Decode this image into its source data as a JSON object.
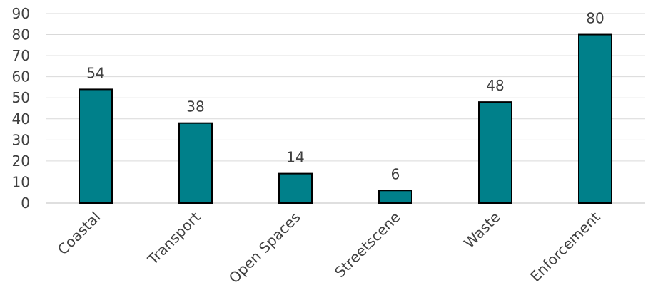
{
  "chart_data": {
    "type": "bar",
    "title": "",
    "xlabel": "",
    "ylabel": "",
    "categories": [
      "Coastal",
      "Transport",
      "Open Spaces",
      "Streetscene",
      "Waste",
      "Enforcement"
    ],
    "values": [
      54,
      38,
      14,
      6,
      48,
      80
    ],
    "ylim": [
      0,
      90
    ],
    "y_ticks": [
      0,
      10,
      20,
      30,
      40,
      50,
      60,
      70,
      80,
      90
    ],
    "data_labels": [
      "54",
      "38",
      "14",
      "6",
      "48",
      "80"
    ],
    "grid": true,
    "legend": "none",
    "bar_color": "#00808a",
    "bar_outline_color": "#000000",
    "gridline_color": "#d9d9d9",
    "text_color": "#404040"
  }
}
